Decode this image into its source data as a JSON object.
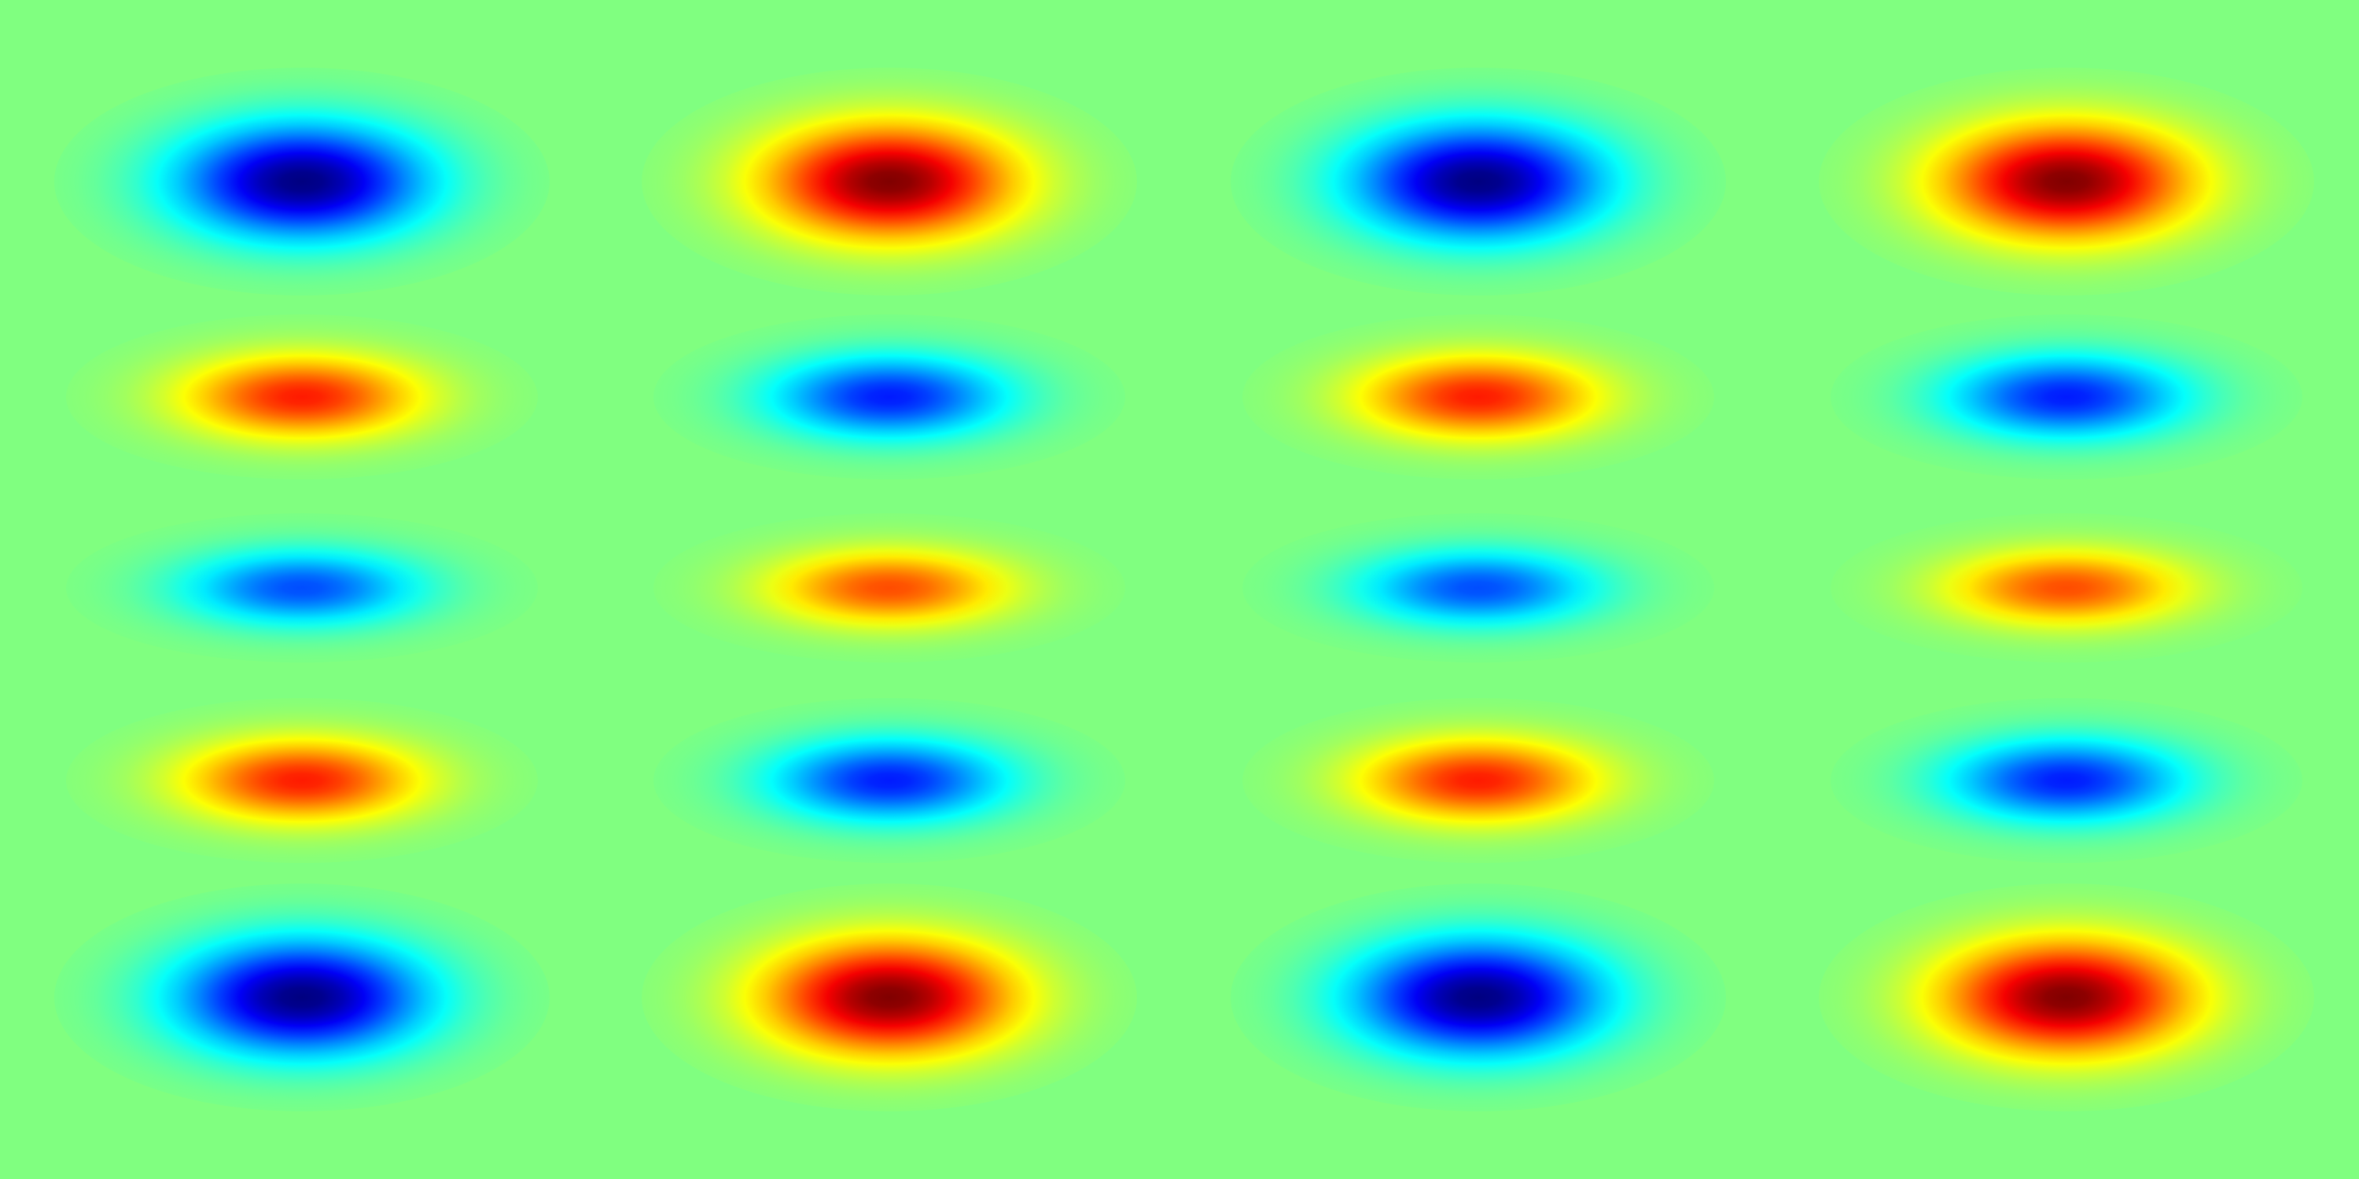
{
  "chart_data": {
    "type": "heatmap",
    "colormap": "jet",
    "zlim": [
      -1,
      1
    ],
    "background_value": 0,
    "grid": false,
    "legend": "none",
    "cell_grid": {
      "columns": 4,
      "rows": 5
    },
    "cells": [
      [
        -1.0,
        1.0,
        -1.0,
        1.0
      ],
      [
        0.7,
        -0.7,
        0.7,
        -0.7
      ],
      [
        -0.6,
        0.6,
        -0.6,
        0.6
      ],
      [
        0.7,
        -0.7,
        0.7,
        -0.7
      ],
      [
        -1.0,
        1.0,
        -1.0,
        1.0
      ]
    ]
  }
}
